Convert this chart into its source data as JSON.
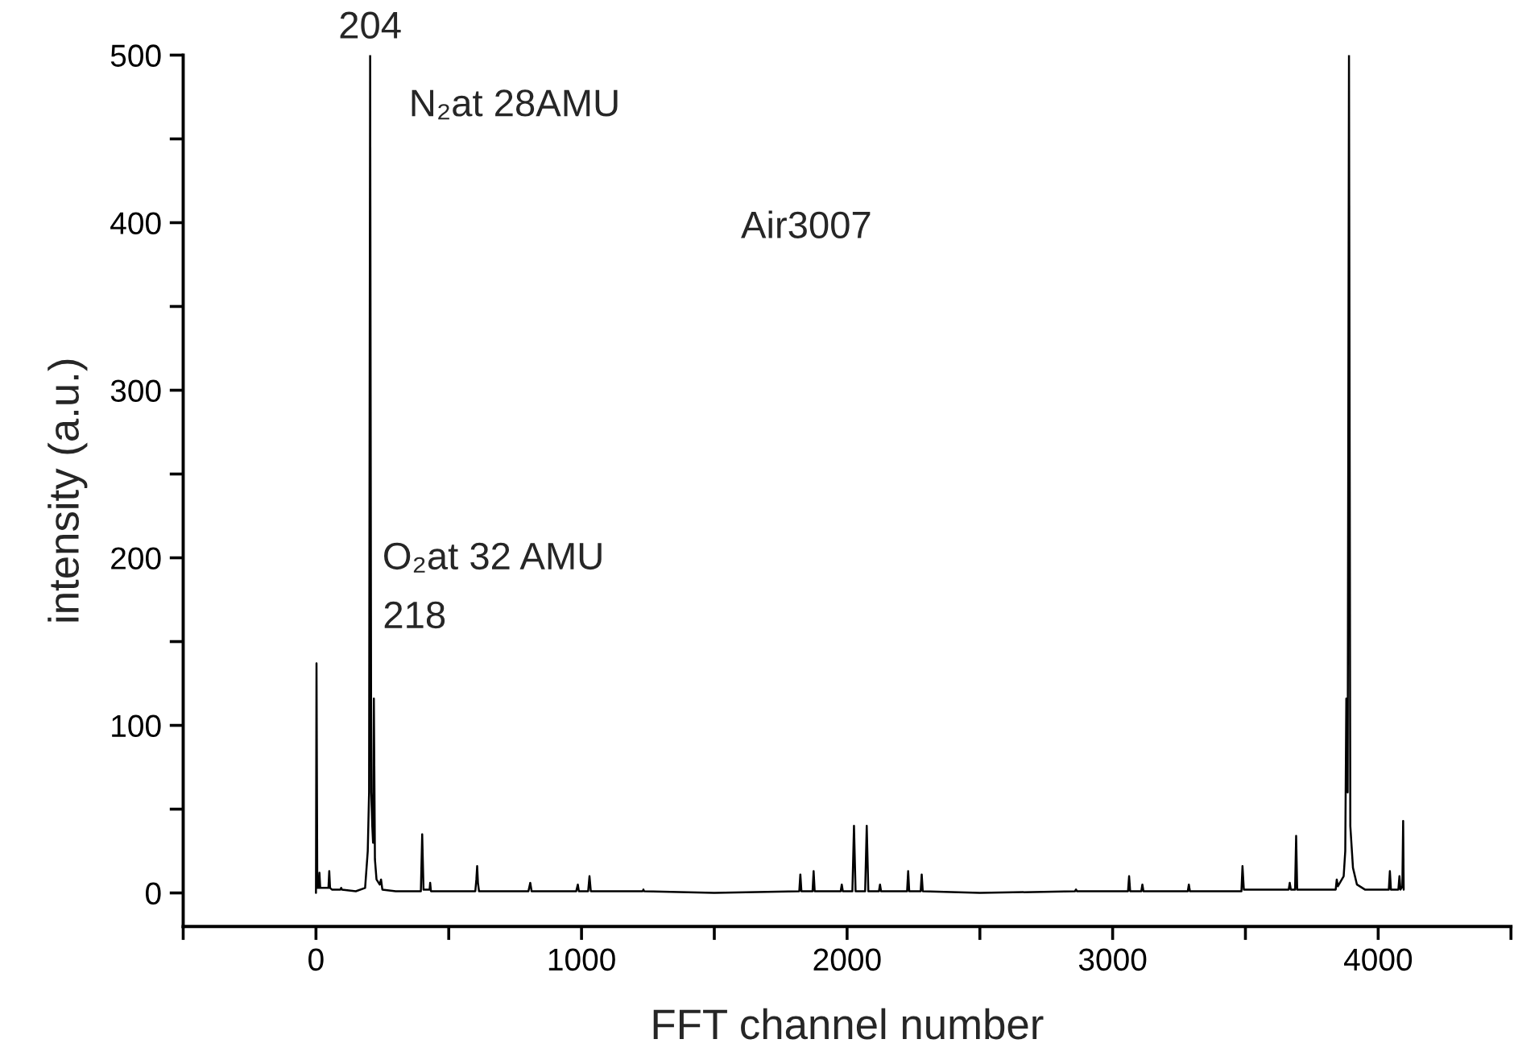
{
  "chart_data": {
    "type": "line",
    "xlabel": "FFT channel number",
    "ylabel": "intensity (a.u.)",
    "xlim": [
      -500,
      4500
    ],
    "xticks": [
      {
        "value": -500,
        "label": null
      },
      0,
      {
        "value": 500,
        "label": null
      },
      1000,
      {
        "value": 1500,
        "label": null
      },
      2000,
      {
        "value": 2500,
        "label": null
      },
      3000,
      {
        "value": 3500,
        "label": null
      },
      4000,
      {
        "value": 4500,
        "label": null
      }
    ],
    "ylim": [
      -20,
      500
    ],
    "yticks": [
      0,
      {
        "value": 50,
        "label": null
      },
      100,
      {
        "value": 150,
        "label": null
      },
      200,
      {
        "value": 250,
        "label": null
      },
      300,
      {
        "value": 350,
        "label": null
      },
      400,
      {
        "value": 450,
        "label": null
      },
      500
    ],
    "grid": false,
    "marker": "none",
    "line_style": "solid",
    "series": [
      {
        "color": "#000000",
        "x": [
          0,
          2,
          5,
          10,
          13,
          16,
          40,
          47,
          50,
          53,
          60,
          92,
          95,
          98,
          150,
          185,
          195,
          200,
          204,
          208,
          212,
          215,
          218,
          222,
          228,
          240,
          245,
          250,
          300,
          395,
          400,
          405,
          428,
          430,
          433,
          600,
          604,
          607,
          610,
          614,
          800,
          807,
          812,
          980,
          986,
          990,
          1025,
          1030,
          1035,
          1230,
          1233,
          1236,
          1500,
          1820,
          1824,
          1828,
          1870,
          1874,
          1878,
          1976,
          1980,
          1984,
          2020,
          2026,
          2032,
          2068,
          2074,
          2080,
          2120,
          2124,
          2128,
          2226,
          2230,
          2234,
          2277,
          2281,
          2285,
          2500,
          2858,
          2862,
          2866,
          3058,
          3062,
          3066,
          3108,
          3112,
          3116,
          3283,
          3287,
          3291,
          3485,
          3489,
          3494,
          3663,
          3667,
          3671,
          3687,
          3691,
          3695,
          3840,
          3844,
          3848,
          3870,
          3876,
          3880,
          3885,
          3890,
          3895,
          3905,
          3920,
          3950,
          4040,
          4044,
          4048,
          4076,
          4080,
          4084,
          4091,
          4094,
          4096
        ],
        "values": [
          0,
          137,
          3,
          3,
          12,
          3,
          3,
          3,
          13,
          3,
          2,
          2,
          3,
          2,
          1,
          3,
          25,
          60,
          500,
          60,
          40,
          30,
          116,
          20,
          8,
          5,
          8,
          2,
          1,
          1,
          35,
          2,
          2,
          6,
          1,
          1,
          8,
          16,
          6,
          1,
          1,
          6,
          1,
          1,
          5,
          1,
          1,
          10,
          1,
          1,
          2,
          1,
          0,
          1,
          11,
          1,
          1,
          13,
          1,
          1,
          5,
          1,
          1,
          40,
          1,
          1,
          40,
          1,
          1,
          5,
          1,
          1,
          13,
          1,
          1,
          11,
          1,
          0,
          1,
          2,
          1,
          1,
          10,
          1,
          1,
          5,
          1,
          1,
          5,
          1,
          1,
          16,
          2,
          2,
          6,
          2,
          2,
          34,
          2,
          2,
          8,
          4,
          10,
          25,
          116,
          60,
          500,
          40,
          15,
          5,
          2,
          2,
          13,
          2,
          2,
          10,
          2,
          4,
          43,
          2
        ]
      }
    ],
    "annotations": [
      {
        "text": "204",
        "x": 204,
        "y": 500
      },
      "N₂at 28AMU",
      "Air3007",
      {
        "text": "218",
        "x": 218,
        "y": 116
      },
      "O₂at 32 AMU"
    ]
  }
}
